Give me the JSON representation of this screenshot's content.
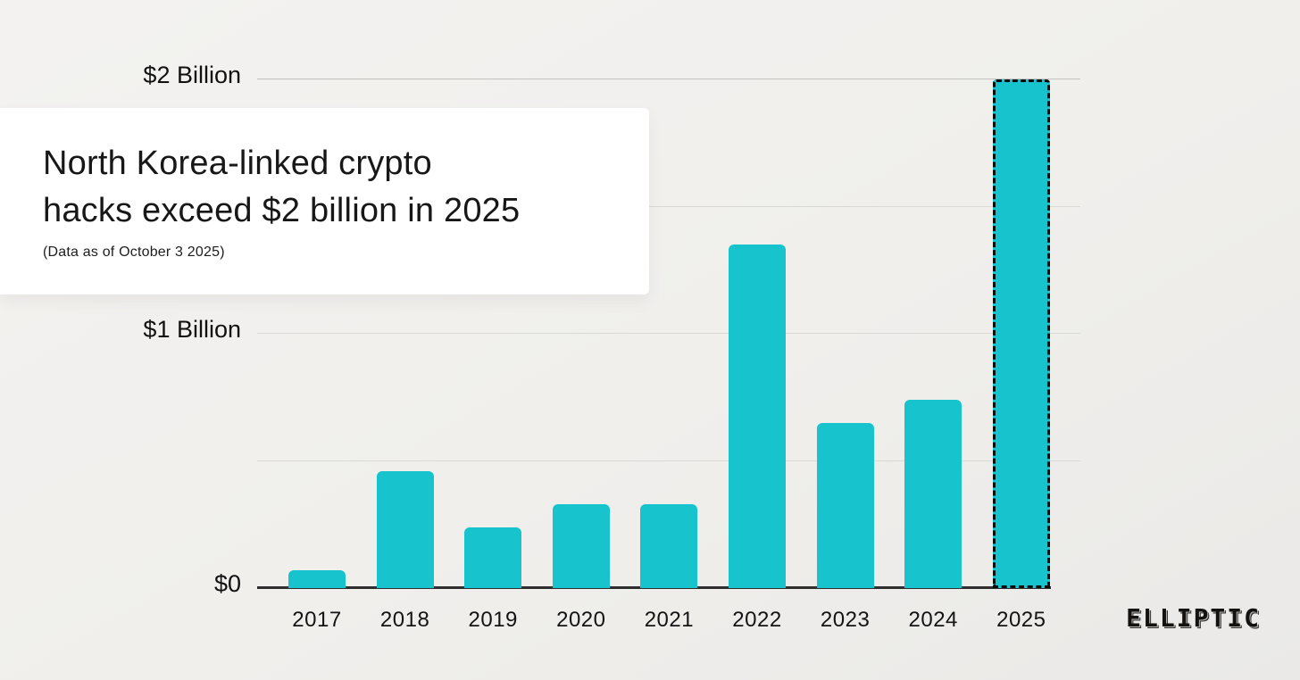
{
  "header": {
    "title_line1": "North Korea-linked crypto",
    "title_line2": "hacks exceed $2 billion in 2025",
    "subtitle": "(Data as of October 3 2025)"
  },
  "branding": {
    "logo_text": "ELLIPTIC"
  },
  "colors": {
    "bar": "#17C4CE",
    "background": "#F0EFEC",
    "card": "#FFFFFF",
    "axis": "#2E2E2E",
    "gridline": "#DBD9D6",
    "highlight_border": "#0B0B0B",
    "text": "#141414"
  },
  "chart_data": {
    "type": "bar",
    "title": "North Korea-linked crypto hacks exceed $2 billion in 2025",
    "subtitle": "(Data as of October 3 2025)",
    "categories": [
      "2017",
      "2018",
      "2019",
      "2020",
      "2021",
      "2022",
      "2023",
      "2024",
      "2025"
    ],
    "values": [
      0.07,
      0.46,
      0.24,
      0.33,
      0.33,
      1.35,
      0.65,
      0.74,
      2.0
    ],
    "unit": "USD billions",
    "xlabel": "",
    "ylabel": "",
    "ylim": [
      0,
      2.0
    ],
    "y_ticks": [
      {
        "value": 0,
        "label": "$0"
      },
      {
        "value": 1,
        "label": "$1 Billion"
      },
      {
        "value": 2,
        "label": "$2 Billion"
      }
    ],
    "gridline_values": [
      0.5,
      1.0,
      1.5,
      2.0
    ],
    "grid": "horizontal",
    "legend": "none",
    "highlight_category": "2025",
    "highlight_style": "dashed-border"
  }
}
